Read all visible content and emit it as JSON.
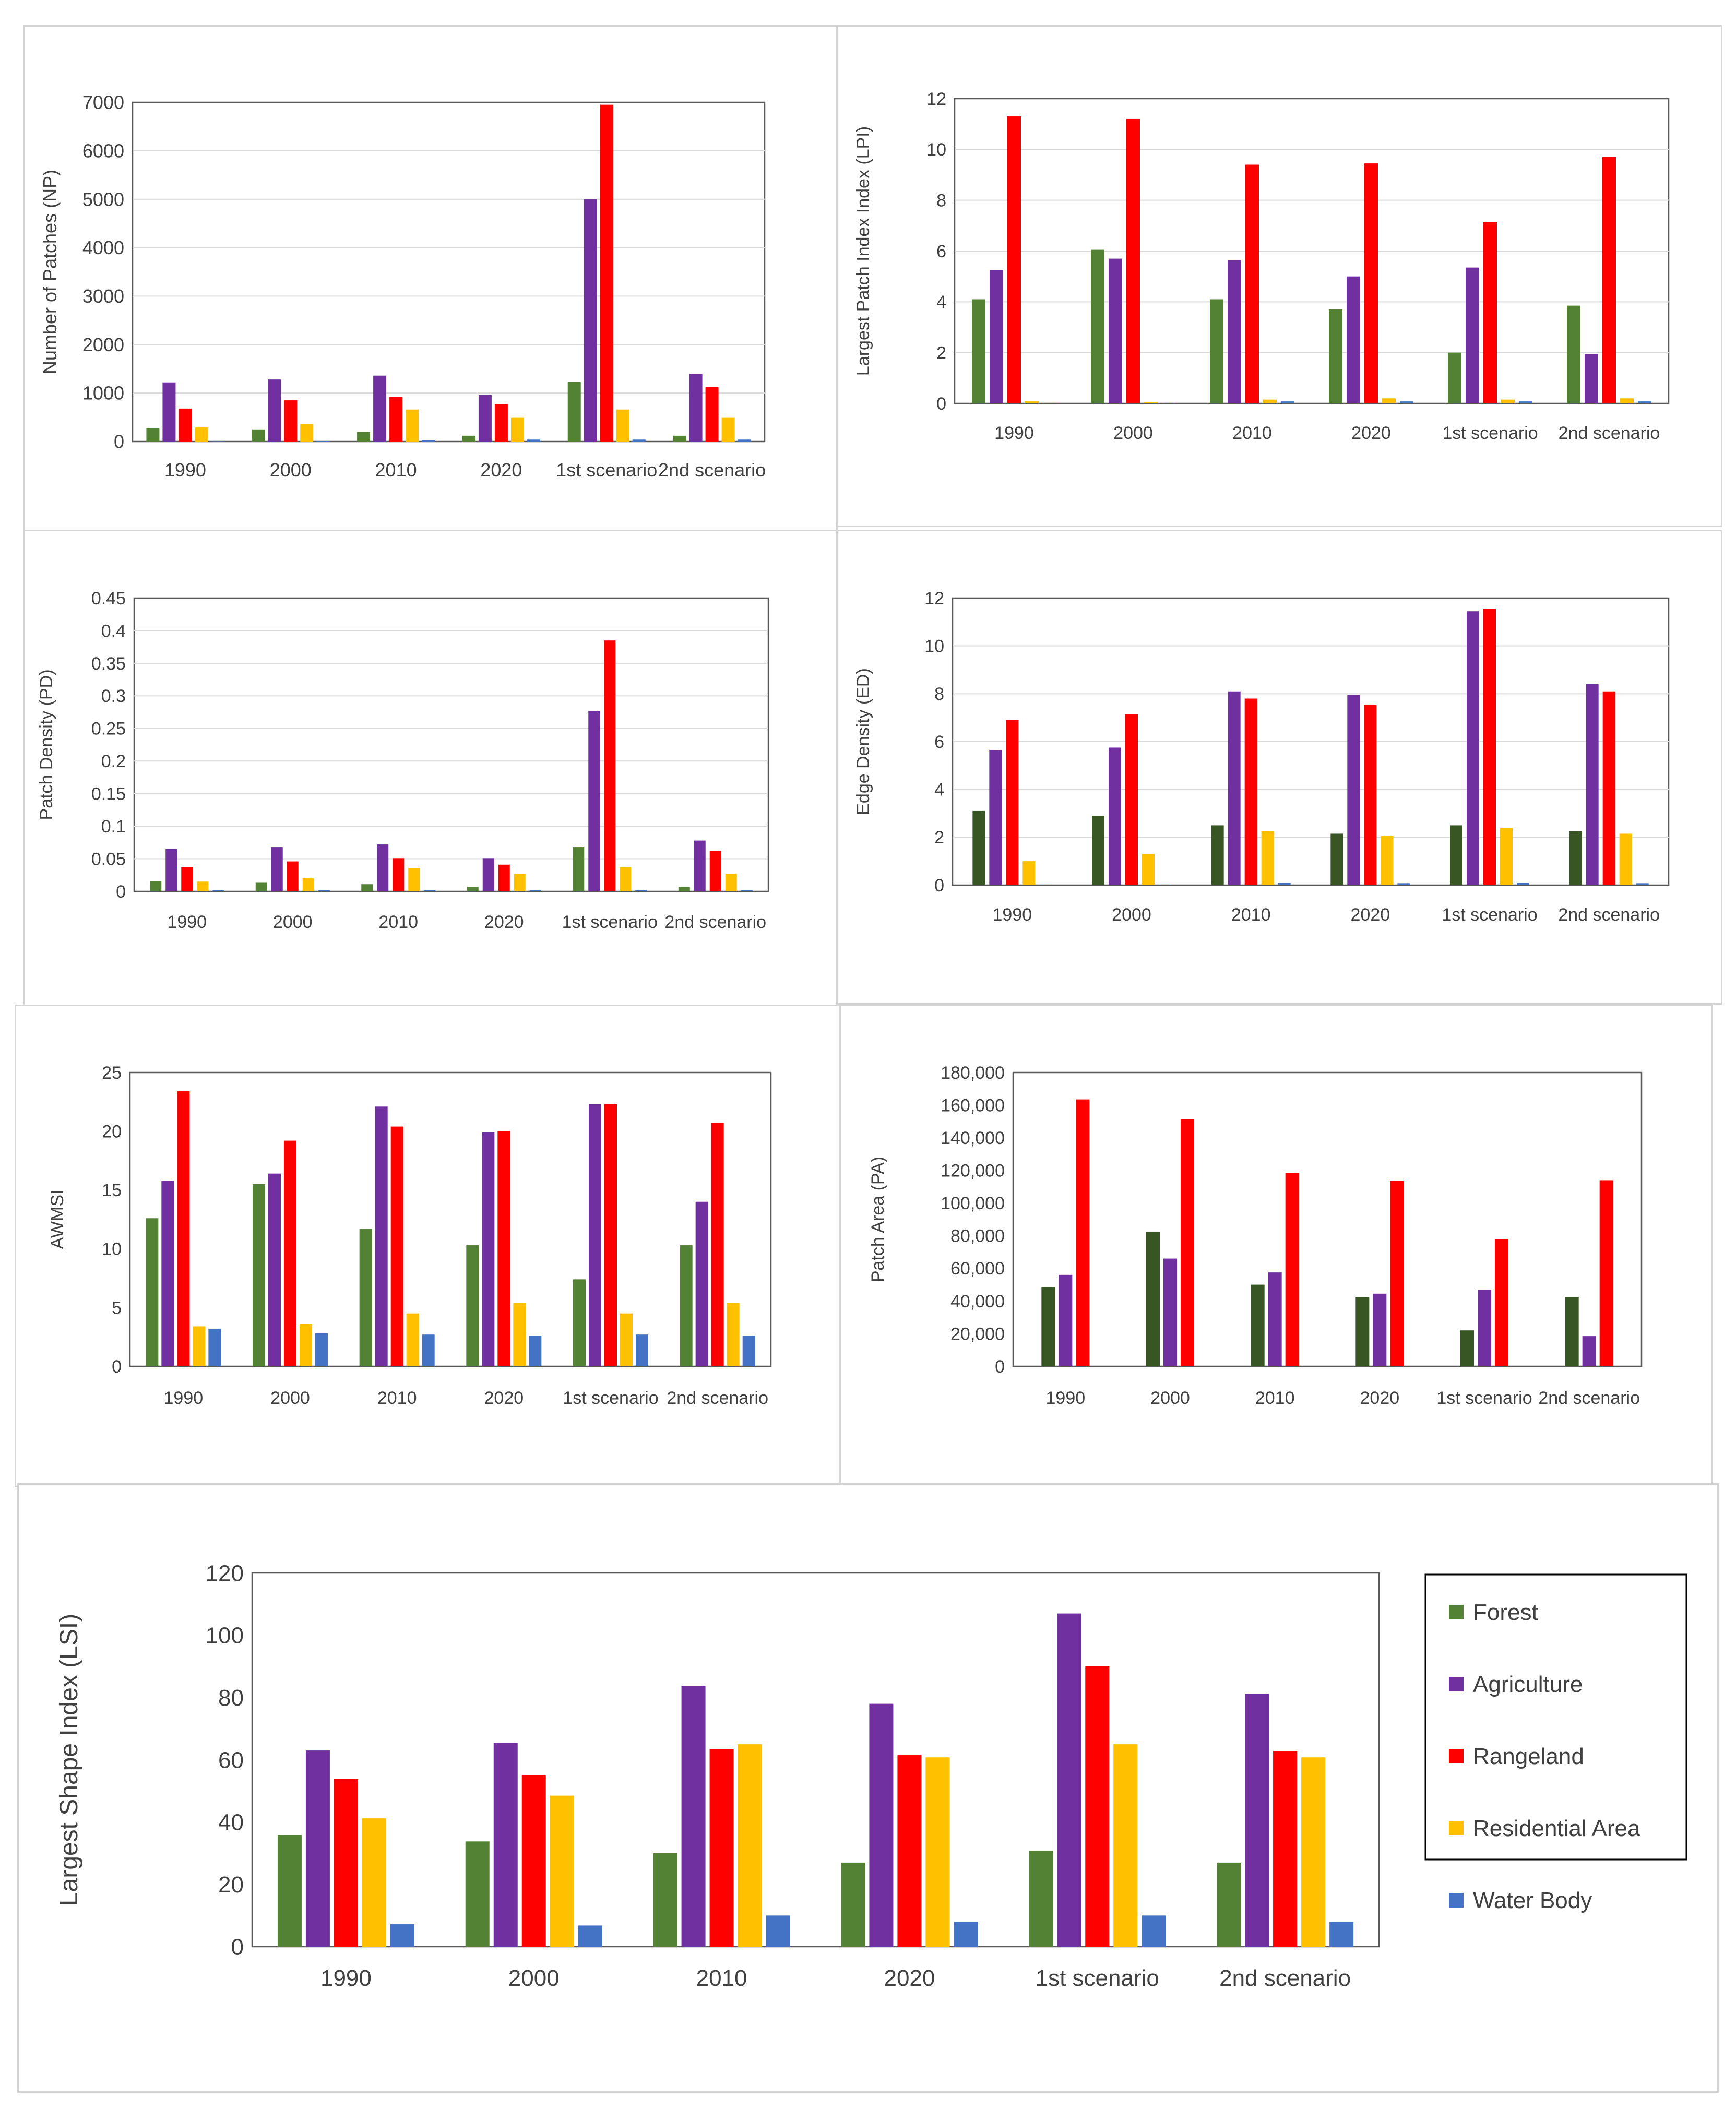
{
  "colors": {
    "forest": "#548235",
    "forest_dark": "#375623",
    "agriculture": "#7030a0",
    "rangeland": "#ff0000",
    "residential": "#ffc000",
    "water": "#4472c4",
    "gridline": "#d9d9d9",
    "axis_text": "#404040"
  },
  "legend": {
    "items": [
      {
        "label": "Forest",
        "color": "#548235"
      },
      {
        "label": "Agriculture",
        "color": "#7030a0"
      },
      {
        "label": "Rangeland",
        "color": "#ff0000"
      },
      {
        "label": "Residential Area",
        "color": "#ffc000"
      },
      {
        "label": "Water Body",
        "color": "#4472c4"
      }
    ]
  },
  "chart_data": [
    {
      "id": "np",
      "type": "bar",
      "ylabel": "Number of Patches (NP)",
      "categories": [
        "1990",
        "2000",
        "2010",
        "2020",
        "1st scenario",
        "2nd scenario"
      ],
      "ylim": [
        0,
        7000
      ],
      "yticks": [
        "0",
        "1000",
        "2000",
        "3000",
        "4000",
        "5000",
        "6000",
        "7000"
      ],
      "grid": true,
      "series": [
        {
          "name": "Forest",
          "color": "#548235",
          "values": [
            280,
            250,
            200,
            120,
            1230,
            120
          ]
        },
        {
          "name": "Agriculture",
          "color": "#7030a0",
          "values": [
            1220,
            1280,
            1360,
            960,
            5000,
            1400
          ]
        },
        {
          "name": "Rangeland",
          "color": "#ff0000",
          "values": [
            680,
            850,
            920,
            770,
            6950,
            1120
          ]
        },
        {
          "name": "Residential Area",
          "color": "#ffc000",
          "values": [
            290,
            360,
            660,
            500,
            660,
            500
          ]
        },
        {
          "name": "Water Body",
          "color": "#4472c4",
          "values": [
            5,
            10,
            30,
            40,
            40,
            40
          ]
        }
      ]
    },
    {
      "id": "lpi",
      "type": "bar",
      "ylabel": "Largest Patch Index Index (LPI)",
      "categories": [
        "1990",
        "2000",
        "2010",
        "2020",
        "1st scenario",
        "2nd scenario"
      ],
      "ylim": [
        0,
        12
      ],
      "yticks": [
        "0",
        "2",
        "4",
        "6",
        "8",
        "10",
        "12"
      ],
      "grid": true,
      "series": [
        {
          "name": "Forest",
          "color": "#548235",
          "values": [
            4.1,
            6.05,
            4.1,
            3.7,
            2.0,
            3.85
          ]
        },
        {
          "name": "Agriculture",
          "color": "#7030a0",
          "values": [
            5.25,
            5.7,
            5.65,
            5.0,
            5.35,
            1.95
          ]
        },
        {
          "name": "Rangeland",
          "color": "#ff0000",
          "values": [
            11.3,
            11.2,
            9.4,
            9.45,
            7.15,
            9.7
          ]
        },
        {
          "name": "Residential Area",
          "color": "#ffc000",
          "values": [
            0.08,
            0.06,
            0.15,
            0.2,
            0.15,
            0.2
          ]
        },
        {
          "name": "Water Body",
          "color": "#4472c4",
          "values": [
            0.02,
            0.02,
            0.08,
            0.08,
            0.08,
            0.08
          ]
        }
      ]
    },
    {
      "id": "pd",
      "type": "bar",
      "ylabel": "Patch Density (PD)",
      "categories": [
        "1990",
        "2000",
        "2010",
        "2020",
        "1st scenario",
        "2nd scenario"
      ],
      "ylim": [
        0,
        0.45
      ],
      "yticks": [
        "0",
        "0.05",
        "0.1",
        "0.15",
        "0.2",
        "0.25",
        "0.3",
        "0.35",
        "0.4",
        "0.45"
      ],
      "grid": true,
      "series": [
        {
          "name": "Forest",
          "color": "#548235",
          "values": [
            0.016,
            0.014,
            0.011,
            0.007,
            0.068,
            0.007
          ]
        },
        {
          "name": "Agriculture",
          "color": "#7030a0",
          "values": [
            0.065,
            0.068,
            0.072,
            0.051,
            0.277,
            0.078
          ]
        },
        {
          "name": "Rangeland",
          "color": "#ff0000",
          "values": [
            0.037,
            0.046,
            0.051,
            0.041,
            0.385,
            0.062
          ]
        },
        {
          "name": "Residential Area",
          "color": "#ffc000",
          "values": [
            0.015,
            0.02,
            0.036,
            0.027,
            0.037,
            0.027
          ]
        },
        {
          "name": "Water Body",
          "color": "#4472c4",
          "values": [
            0.002,
            0.002,
            0.002,
            0.002,
            0.002,
            0.002
          ]
        }
      ]
    },
    {
      "id": "ed",
      "type": "bar",
      "ylabel": "Edge Density (ED)",
      "categories": [
        "1990",
        "2000",
        "2010",
        "2020",
        "1st scenario",
        "2nd scenario"
      ],
      "ylim": [
        0,
        12
      ],
      "yticks": [
        "0",
        "2",
        "4",
        "6",
        "8",
        "10",
        "12"
      ],
      "grid": true,
      "series": [
        {
          "name": "Forest",
          "color": "#375623",
          "values": [
            3.1,
            2.9,
            2.5,
            2.15,
            2.5,
            2.25
          ]
        },
        {
          "name": "Agriculture",
          "color": "#7030a0",
          "values": [
            5.65,
            5.75,
            8.1,
            7.95,
            11.45,
            8.4
          ]
        },
        {
          "name": "Rangeland",
          "color": "#ff0000",
          "values": [
            6.9,
            7.15,
            7.8,
            7.55,
            11.55,
            8.1
          ]
        },
        {
          "name": "Residential Area",
          "color": "#ffc000",
          "values": [
            1.0,
            1.3,
            2.25,
            2.05,
            2.4,
            2.15
          ]
        },
        {
          "name": "Water Body",
          "color": "#4472c4",
          "values": [
            0.02,
            0.02,
            0.1,
            0.08,
            0.1,
            0.08
          ]
        }
      ]
    },
    {
      "id": "awmsi",
      "type": "bar",
      "ylabel": "AWMSI",
      "categories": [
        "1990",
        "2000",
        "2010",
        "2020",
        "1st scenario",
        "2nd scenario"
      ],
      "ylim": [
        0,
        25
      ],
      "yticks": [
        "0",
        "5",
        "10",
        "15",
        "20",
        "25"
      ],
      "grid": false,
      "series": [
        {
          "name": "Forest",
          "color": "#548235",
          "values": [
            12.6,
            15.5,
            11.7,
            10.3,
            7.4,
            10.3
          ]
        },
        {
          "name": "Agriculture",
          "color": "#7030a0",
          "values": [
            15.8,
            16.4,
            22.1,
            19.9,
            22.3,
            14.0
          ]
        },
        {
          "name": "Rangeland",
          "color": "#ff0000",
          "values": [
            23.4,
            19.2,
            20.4,
            20.0,
            22.3,
            20.7
          ]
        },
        {
          "name": "Residential Area",
          "color": "#ffc000",
          "values": [
            3.4,
            3.6,
            4.5,
            5.4,
            4.5,
            5.4
          ]
        },
        {
          "name": "Water Body",
          "color": "#4472c4",
          "values": [
            3.2,
            2.8,
            2.7,
            2.6,
            2.7,
            2.6
          ]
        }
      ]
    },
    {
      "id": "pa",
      "type": "bar",
      "ylabel": "Patch Area (PA)",
      "categories": [
        "1990",
        "2000",
        "2010",
        "2020",
        "1st scenario",
        "2nd scenario"
      ],
      "ylim": [
        0,
        180000
      ],
      "yticks": [
        "0",
        "20,000",
        "40,000",
        "60,000",
        "80,000",
        "100,000",
        "120,000",
        "140,000",
        "160,000",
        "180,000"
      ],
      "grid": false,
      "series": [
        {
          "name": "Forest",
          "color": "#375623",
          "values": [
            48500,
            82500,
            50000,
            42500,
            22000,
            42500
          ]
        },
        {
          "name": "Agriculture",
          "color": "#7030a0",
          "values": [
            56000,
            66000,
            57500,
            44500,
            47000,
            18500
          ]
        },
        {
          "name": "Rangeland",
          "color": "#ff0000",
          "values": [
            163500,
            151500,
            118500,
            113500,
            78000,
            114000
          ]
        }
      ]
    },
    {
      "id": "lsi",
      "type": "bar",
      "ylabel": "Largest Shape Index (LSI)",
      "categories": [
        "1990",
        "2000",
        "2010",
        "2020",
        "1st scenario",
        "2nd scenario"
      ],
      "ylim": [
        0,
        120
      ],
      "yticks": [
        "0",
        "20",
        "40",
        "60",
        "80",
        "100",
        "120"
      ],
      "grid": false,
      "series": [
        {
          "name": "Forest",
          "color": "#548235",
          "values": [
            35.8,
            33.8,
            30.0,
            27.0,
            30.8,
            27.0
          ]
        },
        {
          "name": "Agriculture",
          "color": "#7030a0",
          "values": [
            63.0,
            65.5,
            83.8,
            78.0,
            107.0,
            81.2
          ]
        },
        {
          "name": "Rangeland",
          "color": "#ff0000",
          "values": [
            53.8,
            55.0,
            63.5,
            61.5,
            90.0,
            62.8
          ]
        },
        {
          "name": "Residential Area",
          "color": "#ffc000",
          "values": [
            41.2,
            48.5,
            65.0,
            60.8,
            65.0,
            60.8
          ]
        },
        {
          "name": "Water Body",
          "color": "#4472c4",
          "values": [
            7.2,
            6.8,
            10.0,
            8.0,
            10.0,
            8.0
          ]
        }
      ]
    }
  ]
}
